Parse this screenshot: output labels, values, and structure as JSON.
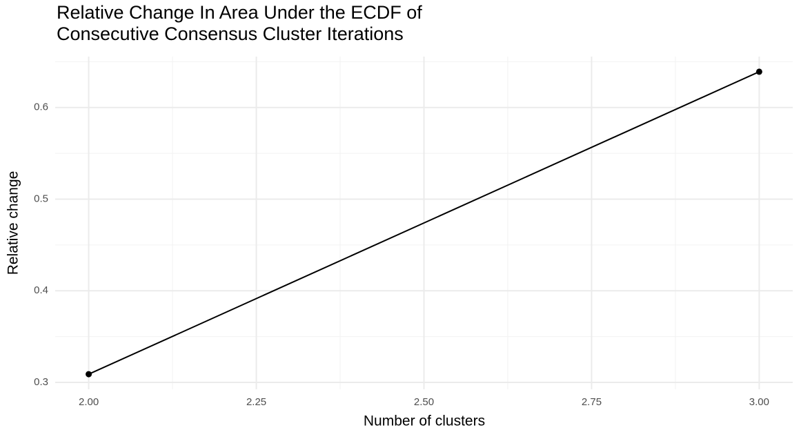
{
  "chart_data": {
    "type": "line",
    "title": [
      "Relative Change In Area Under the ECDF of",
      "Consecutive Consensus Cluster Iterations"
    ],
    "x_label": "Number of clusters",
    "y_label": "Relative change",
    "x": [
      2,
      3
    ],
    "series": [
      {
        "color": "#000000",
        "values": [
          0.309,
          0.639
        ]
      }
    ],
    "xlim": [
      1.95,
      3.05
    ],
    "ylim": [
      0.2925,
      0.6555
    ],
    "xticks": [
      {
        "value": 2,
        "label": "2.00"
      },
      {
        "value": 2.25,
        "label": "2.25"
      },
      {
        "value": 2.5,
        "label": "2.50"
      },
      {
        "value": 2.75,
        "label": "2.75"
      },
      {
        "value": 3,
        "label": "3.00"
      }
    ],
    "yticks": [
      0.3,
      0.4,
      0.5,
      0.6
    ],
    "minor_xticks": [
      2.125,
      2.375,
      2.625,
      2.875
    ],
    "minor_yticks": [
      0.35,
      0.45,
      0.55,
      0.65
    ],
    "grid": true,
    "markers": true
  }
}
